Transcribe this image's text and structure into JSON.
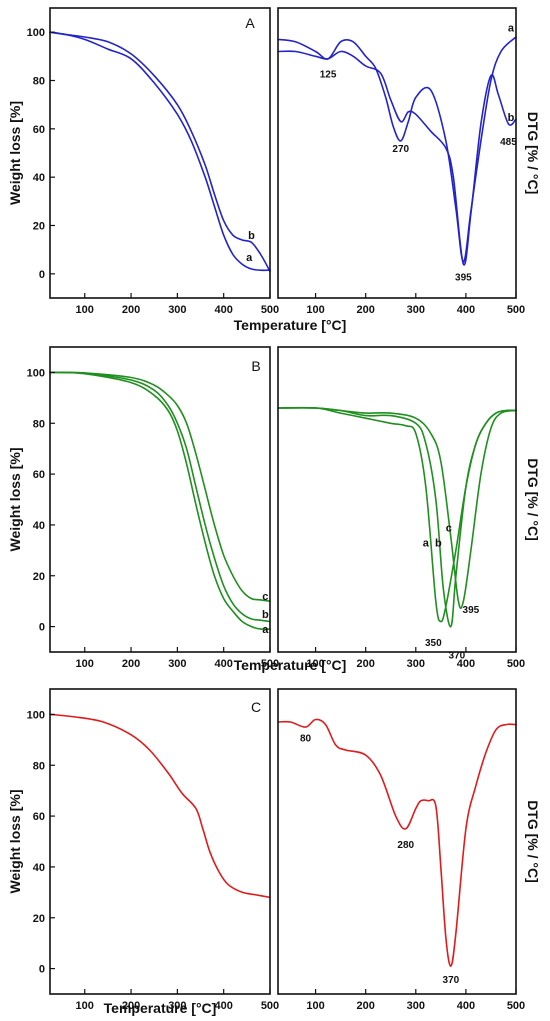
{
  "colors": {
    "A": "#2323cc",
    "B": "#1f8f1f",
    "C": "#e01b1b"
  },
  "chart_data": [
    {
      "panel": "A",
      "type": "line",
      "plot": "tga",
      "xlabel": "Temperature [°C]",
      "ylabel": "Weight loss [%]",
      "xlim": [
        25,
        500
      ],
      "ylim": [
        -10,
        110
      ],
      "xticks": [
        100,
        200,
        300,
        400,
        500
      ],
      "yticks": [
        0,
        20,
        40,
        60,
        80,
        100
      ],
      "series": [
        {
          "name": "a",
          "x": [
            25,
            60,
            100,
            150,
            200,
            250,
            300,
            330,
            360,
            380,
            400,
            420,
            440,
            460,
            480,
            500
          ],
          "y": [
            100,
            99,
            97,
            93,
            89,
            79,
            66,
            55,
            40,
            28,
            16,
            8,
            4,
            2,
            1.5,
            1.5
          ]
        },
        {
          "name": "b",
          "x": [
            25,
            60,
            100,
            150,
            200,
            250,
            300,
            330,
            360,
            380,
            400,
            420,
            440,
            460,
            480,
            500
          ],
          "y": [
            100,
            99,
            98,
            96,
            91,
            82,
            70,
            59,
            45,
            33,
            22,
            16,
            14,
            13,
            8,
            1
          ]
        }
      ],
      "annotations": [
        {
          "text": "a",
          "x": 455,
          "y": 7
        },
        {
          "text": "b",
          "x": 460,
          "y": 16
        }
      ]
    },
    {
      "panel": "A",
      "type": "line",
      "plot": "dtg",
      "xlabel": "",
      "ylabel": "DTG [% / °C]",
      "xlim": [
        25,
        500
      ],
      "ylim": [
        -10,
        110
      ],
      "xticks": [
        100,
        200,
        300,
        400,
        500
      ],
      "yticks": [],
      "series": [
        {
          "name": "a",
          "x": [
            25,
            60,
            100,
            125,
            150,
            175,
            200,
            220,
            240,
            255,
            270,
            285,
            300,
            330,
            360,
            380,
            395,
            410,
            430,
            450,
            470,
            500
          ],
          "y": [
            97,
            96,
            92,
            89,
            96,
            96,
            90,
            85,
            73,
            61,
            55,
            63,
            73,
            76,
            55,
            27,
            5,
            26,
            55,
            80,
            92,
            98
          ]
        },
        {
          "name": "b",
          "x": [
            25,
            60,
            100,
            125,
            150,
            175,
            200,
            230,
            250,
            270,
            285,
            300,
            330,
            360,
            375,
            395,
            410,
            430,
            450,
            465,
            485,
            500
          ],
          "y": [
            92,
            92,
            90,
            89,
            92,
            90,
            86,
            83,
            72,
            63,
            67,
            66,
            59,
            52,
            40,
            4,
            25,
            62,
            82,
            74,
            62,
            64
          ]
        }
      ],
      "annotations": [
        {
          "text": "125",
          "x": 125,
          "y": 83
        },
        {
          "text": "270",
          "x": 270,
          "y": 52
        },
        {
          "text": "395",
          "x": 395,
          "y": -1
        },
        {
          "text": "485",
          "x": 485,
          "y": 55
        },
        {
          "text": "a",
          "x": 490,
          "y": 102
        },
        {
          "text": "b",
          "x": 490,
          "y": 65
        }
      ]
    },
    {
      "panel": "B",
      "type": "line",
      "plot": "tga",
      "xlabel": "Temperature [°C]",
      "ylabel": "Weight loss [%]",
      "xlim": [
        25,
        500
      ],
      "ylim": [
        -10,
        110
      ],
      "xticks": [
        100,
        200,
        300,
        400,
        500
      ],
      "yticks": [
        0,
        20,
        40,
        60,
        80,
        100
      ],
      "series": [
        {
          "name": "a",
          "x": [
            25,
            100,
            200,
            250,
            280,
            300,
            320,
            340,
            360,
            380,
            400,
            420,
            440,
            460,
            480,
            500
          ],
          "y": [
            100,
            99.5,
            96,
            91,
            85,
            77,
            64,
            48,
            33,
            20,
            11,
            6,
            2,
            0,
            -1,
            -1
          ]
        },
        {
          "name": "b",
          "x": [
            25,
            100,
            200,
            250,
            280,
            300,
            320,
            340,
            360,
            380,
            400,
            420,
            440,
            460,
            480,
            500
          ],
          "y": [
            100,
            99.7,
            97,
            93,
            87,
            80,
            70,
            55,
            40,
            27,
            16,
            9,
            5,
            3,
            2.5,
            2
          ]
        },
        {
          "name": "c",
          "x": [
            25,
            100,
            200,
            250,
            280,
            300,
            320,
            340,
            360,
            380,
            400,
            420,
            440,
            460,
            480,
            500
          ],
          "y": [
            100,
            99.8,
            98,
            95,
            91,
            87,
            80,
            68,
            54,
            40,
            28,
            20,
            14,
            11,
            10.5,
            10
          ]
        }
      ],
      "annotations": [
        {
          "text": "a",
          "x": 490,
          "y": -1
        },
        {
          "text": "b",
          "x": 490,
          "y": 5
        },
        {
          "text": "c",
          "x": 490,
          "y": 12
        }
      ]
    },
    {
      "panel": "B",
      "type": "line",
      "plot": "dtg",
      "xlabel": "Temperature [°C]",
      "ylabel": "DTG [% / °C]",
      "xlim": [
        25,
        500
      ],
      "ylim": [
        -10,
        110
      ],
      "xticks": [
        100,
        200,
        300,
        400,
        500
      ],
      "yticks": [],
      "series": [
        {
          "name": "a",
          "x": [
            25,
            100,
            150,
            200,
            250,
            280,
            300,
            320,
            340,
            350,
            360,
            380,
            400,
            420,
            440,
            460,
            480,
            500
          ],
          "y": [
            86,
            86,
            84,
            82,
            80,
            79,
            76,
            55,
            10,
            2,
            8,
            30,
            55,
            72,
            80,
            84,
            85,
            85
          ]
        },
        {
          "name": "b",
          "x": [
            25,
            100,
            150,
            200,
            250,
            300,
            320,
            340,
            355,
            370,
            380,
            400,
            420,
            440,
            460,
            480,
            500
          ],
          "y": [
            86,
            86,
            85,
            83,
            83,
            80,
            72,
            50,
            15,
            0,
            20,
            55,
            72,
            80,
            84,
            85,
            85
          ]
        },
        {
          "name": "c",
          "x": [
            25,
            100,
            150,
            200,
            250,
            300,
            330,
            350,
            370,
            385,
            395,
            410,
            430,
            450,
            470,
            500
          ],
          "y": [
            86,
            86,
            85,
            84,
            84,
            82,
            76,
            65,
            35,
            10,
            10,
            30,
            60,
            78,
            84,
            85
          ]
        }
      ],
      "annotations": [
        {
          "text": "a",
          "x": 320,
          "y": 33
        },
        {
          "text": "b",
          "x": 345,
          "y": 33
        },
        {
          "text": "c",
          "x": 366,
          "y": 39
        },
        {
          "text": "350",
          "x": 335,
          "y": -6
        },
        {
          "text": "370",
          "x": 382,
          "y": -11
        },
        {
          "text": "395",
          "x": 410,
          "y": 7
        }
      ]
    },
    {
      "panel": "C",
      "type": "line",
      "plot": "tga",
      "xlabel": "Temperature [°C]",
      "ylabel": "Weight loss [%]",
      "xlim": [
        25,
        500
      ],
      "ylim": [
        -10,
        110
      ],
      "xticks": [
        100,
        200,
        300,
        400,
        500
      ],
      "yticks": [
        0,
        20,
        40,
        60,
        80,
        100
      ],
      "series": [
        {
          "name": "",
          "x": [
            25,
            80,
            140,
            200,
            240,
            280,
            310,
            340,
            355,
            370,
            390,
            410,
            440,
            470,
            500
          ],
          "y": [
            100,
            99,
            97,
            92,
            86,
            77,
            69,
            63,
            55,
            46,
            38,
            33,
            30,
            29,
            28
          ]
        }
      ],
      "annotations": []
    },
    {
      "panel": "C",
      "type": "line",
      "plot": "dtg",
      "xlabel": "",
      "ylabel": "DTG [% / °C]",
      "xlim": [
        25,
        500
      ],
      "ylim": [
        -10,
        110
      ],
      "xticks": [
        100,
        200,
        300,
        400,
        500
      ],
      "yticks": [],
      "series": [
        {
          "name": "",
          "x": [
            25,
            50,
            80,
            100,
            120,
            140,
            160,
            200,
            230,
            260,
            280,
            300,
            310,
            325,
            340,
            350,
            360,
            370,
            380,
            400,
            420,
            440,
            460,
            480,
            500
          ],
          "y": [
            97,
            97,
            95,
            98,
            96,
            88,
            86,
            84,
            76,
            60,
            55,
            63,
            66,
            66,
            64,
            40,
            12,
            1,
            14,
            55,
            72,
            85,
            94,
            96,
            96
          ]
        }
      ],
      "annotations": [
        {
          "text": "80",
          "x": 80,
          "y": 91
        },
        {
          "text": "280",
          "x": 280,
          "y": 49
        },
        {
          "text": "370",
          "x": 370,
          "y": -4
        }
      ]
    }
  ],
  "panel_labels": [
    {
      "panel": "A",
      "text": "A"
    },
    {
      "panel": "B",
      "text": "B"
    },
    {
      "panel": "C",
      "text": "C"
    }
  ]
}
